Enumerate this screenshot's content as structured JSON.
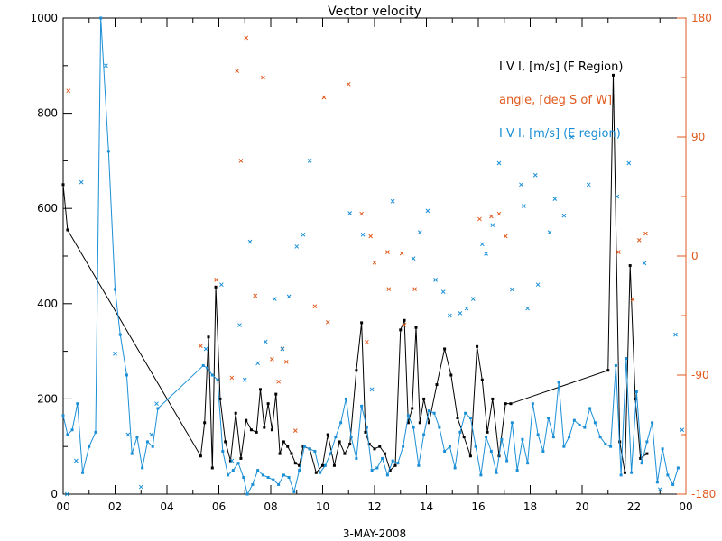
{
  "chart_data": {
    "type": "line",
    "title": "Vector velocity",
    "xlabel": "3-MAY-2008",
    "x_unit": "hours UT",
    "xlim": [
      0,
      24
    ],
    "x_ticks": [
      "00",
      "02",
      "04",
      "06",
      "08",
      "10",
      "12",
      "14",
      "16",
      "18",
      "20",
      "22",
      "00"
    ],
    "ylim_left": [
      0,
      1000
    ],
    "y_ticks_left": [
      "0",
      "200",
      "400",
      "600",
      "800",
      "1000"
    ],
    "ylim_right": [
      -180,
      180
    ],
    "y_ticks_right": [
      "-180",
      "-90",
      "0",
      "90",
      "180"
    ],
    "legend": [
      {
        "label": "I V I, [m/s] (F Region)",
        "color": "#000000"
      },
      {
        "label": "angle, [deg S of W]",
        "color": "#e05a1e"
      },
      {
        "label": "I V I, [m/s] (E region)",
        "color": "#1a8fd6"
      }
    ],
    "series": [
      {
        "name": "I V I, [m/s] (F Region)",
        "axis": "left",
        "color": "#000000",
        "x": [
          0.0,
          0.17,
          5.3,
          5.45,
          5.6,
          5.75,
          5.88,
          6.05,
          6.25,
          6.45,
          6.65,
          6.85,
          7.05,
          7.25,
          7.45,
          7.6,
          7.75,
          7.9,
          8.05,
          8.2,
          8.35,
          8.5,
          8.65,
          8.8,
          8.95,
          9.1,
          9.25,
          9.5,
          9.75,
          10.0,
          10.2,
          10.45,
          10.65,
          10.85,
          11.05,
          11.3,
          11.5,
          11.65,
          11.8,
          12.0,
          12.2,
          12.4,
          12.6,
          12.8,
          13.0,
          13.15,
          13.3,
          13.45,
          13.6,
          13.75,
          13.9,
          14.1,
          14.4,
          14.7,
          14.95,
          15.2,
          15.45,
          15.7,
          15.95,
          16.15,
          16.35,
          16.55,
          16.8,
          17.05,
          17.25,
          21.0,
          21.2,
          21.45,
          21.65,
          21.85,
          22.05,
          22.25,
          22.5
        ],
        "values": [
          650,
          555,
          80,
          150,
          330,
          55,
          435,
          200,
          110,
          70,
          170,
          75,
          155,
          135,
          130,
          220,
          140,
          190,
          135,
          210,
          85,
          110,
          100,
          85,
          65,
          60,
          100,
          95,
          45,
          60,
          125,
          60,
          110,
          85,
          105,
          260,
          360,
          130,
          105,
          95,
          100,
          85,
          50,
          60,
          345,
          365,
          150,
          180,
          350,
          150,
          200,
          150,
          230,
          305,
          250,
          160,
          120,
          80,
          310,
          240,
          130,
          200,
          80,
          190,
          190,
          260,
          880,
          110,
          45,
          480,
          200,
          75,
          85
        ]
      },
      {
        "name": "I V I, [m/s] (E region)",
        "axis": "left",
        "color": "#1a8fd6",
        "x": [
          0.0,
          0.17,
          0.35,
          0.55,
          0.75,
          1.0,
          1.25,
          1.45,
          1.75,
          2.0,
          2.2,
          2.45,
          2.65,
          2.85,
          3.05,
          3.25,
          3.45,
          3.65,
          5.4,
          5.55,
          5.75,
          5.95,
          6.15,
          6.35,
          6.55,
          6.75,
          6.95,
          7.1,
          7.3,
          7.5,
          7.7,
          7.9,
          8.1,
          8.3,
          8.5,
          8.7,
          8.9,
          9.1,
          9.3,
          9.5,
          9.7,
          9.9,
          10.1,
          10.3,
          10.5,
          10.7,
          10.9,
          11.1,
          11.3,
          11.5,
          11.7,
          11.9,
          12.1,
          12.3,
          12.5,
          12.7,
          12.9,
          13.1,
          13.3,
          13.5,
          13.7,
          13.9,
          14.1,
          14.3,
          14.5,
          14.7,
          14.9,
          15.1,
          15.3,
          15.5,
          15.7,
          15.9,
          16.1,
          16.3,
          16.5,
          16.7,
          16.9,
          17.1,
          17.3,
          17.5,
          17.7,
          17.9,
          18.1,
          18.3,
          18.5,
          18.7,
          18.9,
          19.1,
          19.3,
          19.5,
          19.7,
          19.9,
          20.1,
          20.3,
          20.5,
          20.7,
          20.9,
          21.1,
          21.3,
          21.5,
          21.7,
          21.9,
          22.1,
          22.3,
          22.5,
          22.7,
          22.9,
          23.1,
          23.3,
          23.5,
          23.7
        ],
        "values": [
          165,
          125,
          135,
          190,
          45,
          100,
          130,
          1030,
          720,
          430,
          335,
          250,
          85,
          120,
          55,
          110,
          100,
          180,
          270,
          265,
          250,
          240,
          90,
          40,
          50,
          65,
          35,
          0,
          20,
          50,
          40,
          35,
          30,
          20,
          40,
          35,
          5,
          50,
          100,
          95,
          90,
          45,
          60,
          85,
          120,
          150,
          200,
          120,
          75,
          185,
          140,
          50,
          55,
          75,
          40,
          70,
          65,
          100,
          165,
          140,
          60,
          125,
          175,
          170,
          140,
          90,
          100,
          55,
          130,
          170,
          160,
          100,
          40,
          120,
          90,
          45,
          115,
          70,
          150,
          50,
          115,
          65,
          190,
          125,
          90,
          160,
          120,
          235,
          100,
          120,
          155,
          145,
          140,
          180,
          150,
          120,
          105,
          100,
          270,
          40,
          285,
          45,
          215,
          65,
          110,
          150,
          25,
          95,
          40,
          20,
          55
        ]
      },
      {
        "name": "angle, [deg S of W]",
        "axis": "right",
        "type": "scatter",
        "color": "#e05a1e",
        "x": [
          0.2,
          5.3,
          5.9,
          6.5,
          6.7,
          6.85,
          7.05,
          7.4,
          7.7,
          8.05,
          8.3,
          8.45,
          8.6,
          8.95,
          9.7,
          10.05,
          10.2,
          11.0,
          11.5,
          11.7,
          11.85,
          12.0,
          12.5,
          12.55,
          13.05,
          13.15,
          13.55,
          16.05,
          16.5,
          16.8,
          17.05,
          21.4,
          21.95,
          22.2,
          22.45
        ],
        "values": [
          125,
          -68,
          -18,
          -92,
          140,
          72,
          165,
          -30,
          135,
          -78,
          -95,
          -70,
          -80,
          -132,
          -38,
          120,
          -50,
          130,
          32,
          -65,
          15,
          -5,
          3,
          -25,
          2,
          -52,
          -25,
          28,
          30,
          32,
          15,
          3,
          -33,
          12,
          17
        ]
      },
      {
        "name": "I V I, [m/s] (E region) unconnected points",
        "axis": "left",
        "type": "scatter",
        "color": "#1a8fd6",
        "x": [
          0.15,
          0.5,
          0.7,
          1.65,
          2.0,
          2.5,
          3.0,
          3.4,
          3.6,
          5.5,
          6.1,
          6.5,
          6.8,
          7.0,
          7.2,
          7.5,
          7.8,
          8.15,
          8.45,
          8.7,
          9.0,
          9.25,
          9.5,
          11.05,
          11.55,
          11.9,
          12.7,
          13.5,
          13.75,
          14.05,
          14.35,
          14.65,
          14.9,
          15.3,
          15.55,
          15.8,
          16.15,
          16.3,
          16.55,
          16.8,
          17.3,
          17.65,
          17.75,
          17.9,
          18.2,
          18.3,
          18.75,
          18.95,
          19.3,
          19.6,
          20.25,
          21.35,
          21.8,
          22.4,
          23.0,
          23.6,
          23.85
        ],
        "values": [
          0,
          70,
          655,
          900,
          295,
          125,
          15,
          125,
          190,
          305,
          440,
          70,
          355,
          240,
          530,
          275,
          320,
          410,
          305,
          415,
          520,
          545,
          700,
          590,
          545,
          220,
          615,
          495,
          550,
          595,
          450,
          425,
          375,
          380,
          390,
          410,
          525,
          505,
          565,
          695,
          430,
          650,
          605,
          390,
          670,
          440,
          550,
          620,
          585,
          750,
          650,
          625,
          695,
          485,
          10,
          335,
          135
        ]
      }
    ]
  }
}
